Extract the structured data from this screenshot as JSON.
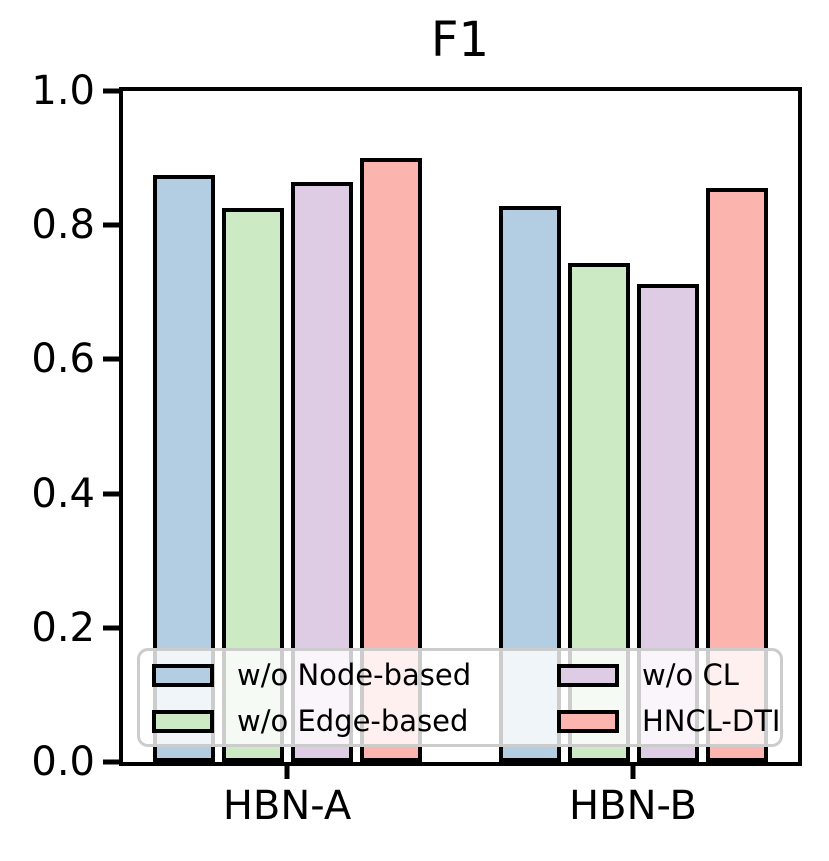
{
  "chart_data": {
    "type": "bar",
    "title": "F1",
    "categories": [
      "HBN-A",
      "HBN-B"
    ],
    "series": [
      {
        "name": "w/o Node-based",
        "color": "#b3cde3",
        "values": [
          0.875,
          0.828
        ]
      },
      {
        "name": "w/o Edge-based",
        "color": "#ccebc5",
        "values": [
          0.825,
          0.743
        ]
      },
      {
        "name": "w/o CL",
        "color": "#decbe4",
        "values": [
          0.865,
          0.712
        ]
      },
      {
        "name": "HNCL-DTI",
        "color": "#fbb4ae",
        "values": [
          0.9,
          0.855
        ]
      }
    ],
    "bar_edge_color": "#000000",
    "xlabel": "",
    "ylabel": "",
    "ylim": [
      0.0,
      1.0
    ],
    "yticks": [
      1.0,
      0.8,
      0.6,
      0.4,
      0.2,
      0.0
    ],
    "ytick_labels": [
      "1.0",
      "0.8",
      "0.6",
      "0.4",
      "0.2",
      "0.0"
    ],
    "grid": false,
    "legend_position": "lower center, inside axes, 2 columns",
    "spine_color": "#000000",
    "background_color": "#ffffff"
  }
}
